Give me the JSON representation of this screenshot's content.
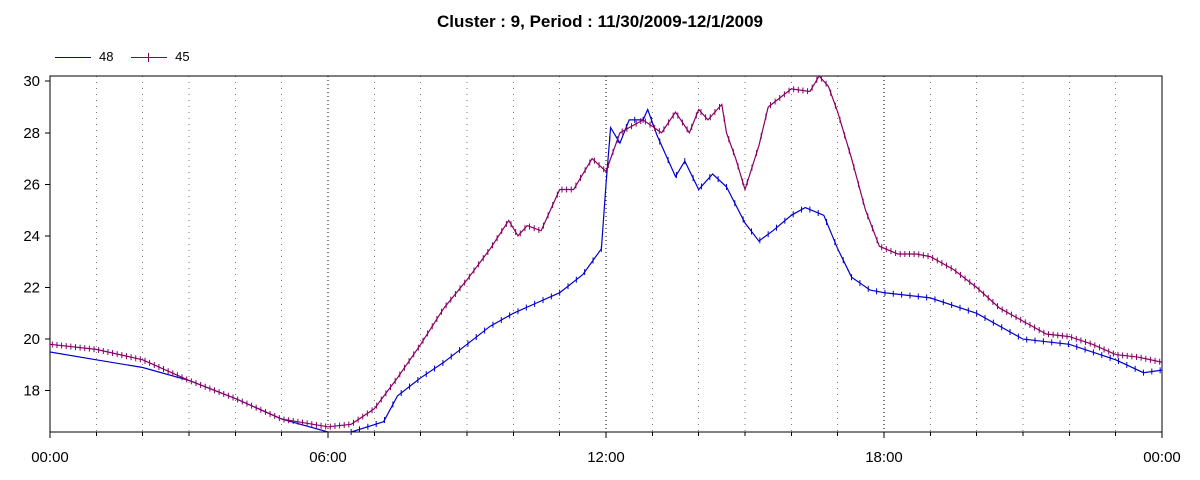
{
  "chart_data": {
    "type": "line",
    "title": "Cluster : 9, Period : 11/30/2009-12/1/2009",
    "xlabel": "",
    "ylabel": "",
    "x_ticks": [
      "00:00",
      "06:00",
      "12:00",
      "18:00",
      "00:00"
    ],
    "y_ticks": [
      18,
      20,
      22,
      24,
      26,
      28,
      30
    ],
    "ylim": [
      16.4,
      30.2
    ],
    "xlim_hours": [
      0,
      24
    ],
    "grid": "dotted vertical",
    "legend": "top-left",
    "series": [
      {
        "name": "48",
        "color": "#0000cc",
        "markers": "sparse",
        "points": [
          [
            0,
            19.5
          ],
          [
            1,
            19.2
          ],
          [
            2,
            18.9
          ],
          [
            3,
            18.4
          ],
          [
            4,
            17.7
          ],
          [
            5,
            16.9
          ],
          [
            6,
            16.4
          ],
          [
            6.5,
            16.4
          ],
          [
            7.2,
            16.8
          ],
          [
            7.5,
            17.8
          ],
          [
            8,
            18.5
          ],
          [
            8.5,
            19.1
          ],
          [
            9,
            19.8
          ],
          [
            9.5,
            20.5
          ],
          [
            10,
            21.0
          ],
          [
            10.5,
            21.4
          ],
          [
            11,
            21.8
          ],
          [
            11.5,
            22.5
          ],
          [
            11.9,
            23.5
          ],
          [
            12.0,
            26.0
          ],
          [
            12.1,
            28.2
          ],
          [
            12.3,
            27.6
          ],
          [
            12.5,
            28.5
          ],
          [
            12.8,
            28.5
          ],
          [
            12.9,
            28.9
          ],
          [
            13.1,
            27.9
          ],
          [
            13.5,
            26.3
          ],
          [
            13.7,
            26.9
          ],
          [
            14.0,
            25.8
          ],
          [
            14.3,
            26.4
          ],
          [
            14.6,
            25.9
          ],
          [
            15,
            24.5
          ],
          [
            15.3,
            23.8
          ],
          [
            15.6,
            24.2
          ],
          [
            16,
            24.8
          ],
          [
            16.3,
            25.1
          ],
          [
            16.7,
            24.8
          ],
          [
            17,
            23.5
          ],
          [
            17.3,
            22.4
          ],
          [
            17.7,
            21.9
          ],
          [
            18,
            21.8
          ],
          [
            19,
            21.6
          ],
          [
            20,
            21.0
          ],
          [
            21,
            20.0
          ],
          [
            22,
            19.8
          ],
          [
            23,
            19.2
          ],
          [
            23.6,
            18.7
          ],
          [
            24,
            18.8
          ]
        ]
      },
      {
        "name": "45",
        "color": "#880066",
        "markers": "dense",
        "points": [
          [
            0,
            19.8
          ],
          [
            1,
            19.6
          ],
          [
            2,
            19.2
          ],
          [
            3,
            18.4
          ],
          [
            4,
            17.7
          ],
          [
            5,
            16.9
          ],
          [
            6,
            16.6
          ],
          [
            6.5,
            16.7
          ],
          [
            7,
            17.3
          ],
          [
            7.5,
            18.5
          ],
          [
            8,
            19.8
          ],
          [
            8.5,
            21.2
          ],
          [
            9,
            22.3
          ],
          [
            9.5,
            23.5
          ],
          [
            9.9,
            24.6
          ],
          [
            10.1,
            24.0
          ],
          [
            10.3,
            24.4
          ],
          [
            10.6,
            24.2
          ],
          [
            11,
            25.8
          ],
          [
            11.3,
            25.8
          ],
          [
            11.7,
            27.0
          ],
          [
            12,
            26.5
          ],
          [
            12.3,
            28.0
          ],
          [
            12.8,
            28.5
          ],
          [
            13.2,
            28.0
          ],
          [
            13.5,
            28.8
          ],
          [
            13.8,
            28.0
          ],
          [
            14,
            28.9
          ],
          [
            14.2,
            28.5
          ],
          [
            14.5,
            29.1
          ],
          [
            14.6,
            28.0
          ],
          [
            14.8,
            27.0
          ],
          [
            15.0,
            25.8
          ],
          [
            15.3,
            27.5
          ],
          [
            15.5,
            29.0
          ],
          [
            16,
            29.7
          ],
          [
            16.4,
            29.6
          ],
          [
            16.6,
            30.2
          ],
          [
            16.8,
            29.8
          ],
          [
            17,
            28.8
          ],
          [
            17.3,
            27.0
          ],
          [
            17.6,
            25.0
          ],
          [
            17.9,
            23.6
          ],
          [
            18.3,
            23.3
          ],
          [
            18.7,
            23.3
          ],
          [
            19,
            23.2
          ],
          [
            19.5,
            22.7
          ],
          [
            20,
            22.0
          ],
          [
            20.5,
            21.2
          ],
          [
            21,
            20.7
          ],
          [
            21.5,
            20.2
          ],
          [
            22,
            20.1
          ],
          [
            22.5,
            19.8
          ],
          [
            23,
            19.4
          ],
          [
            23.5,
            19.3
          ],
          [
            24,
            19.1
          ]
        ]
      }
    ]
  }
}
